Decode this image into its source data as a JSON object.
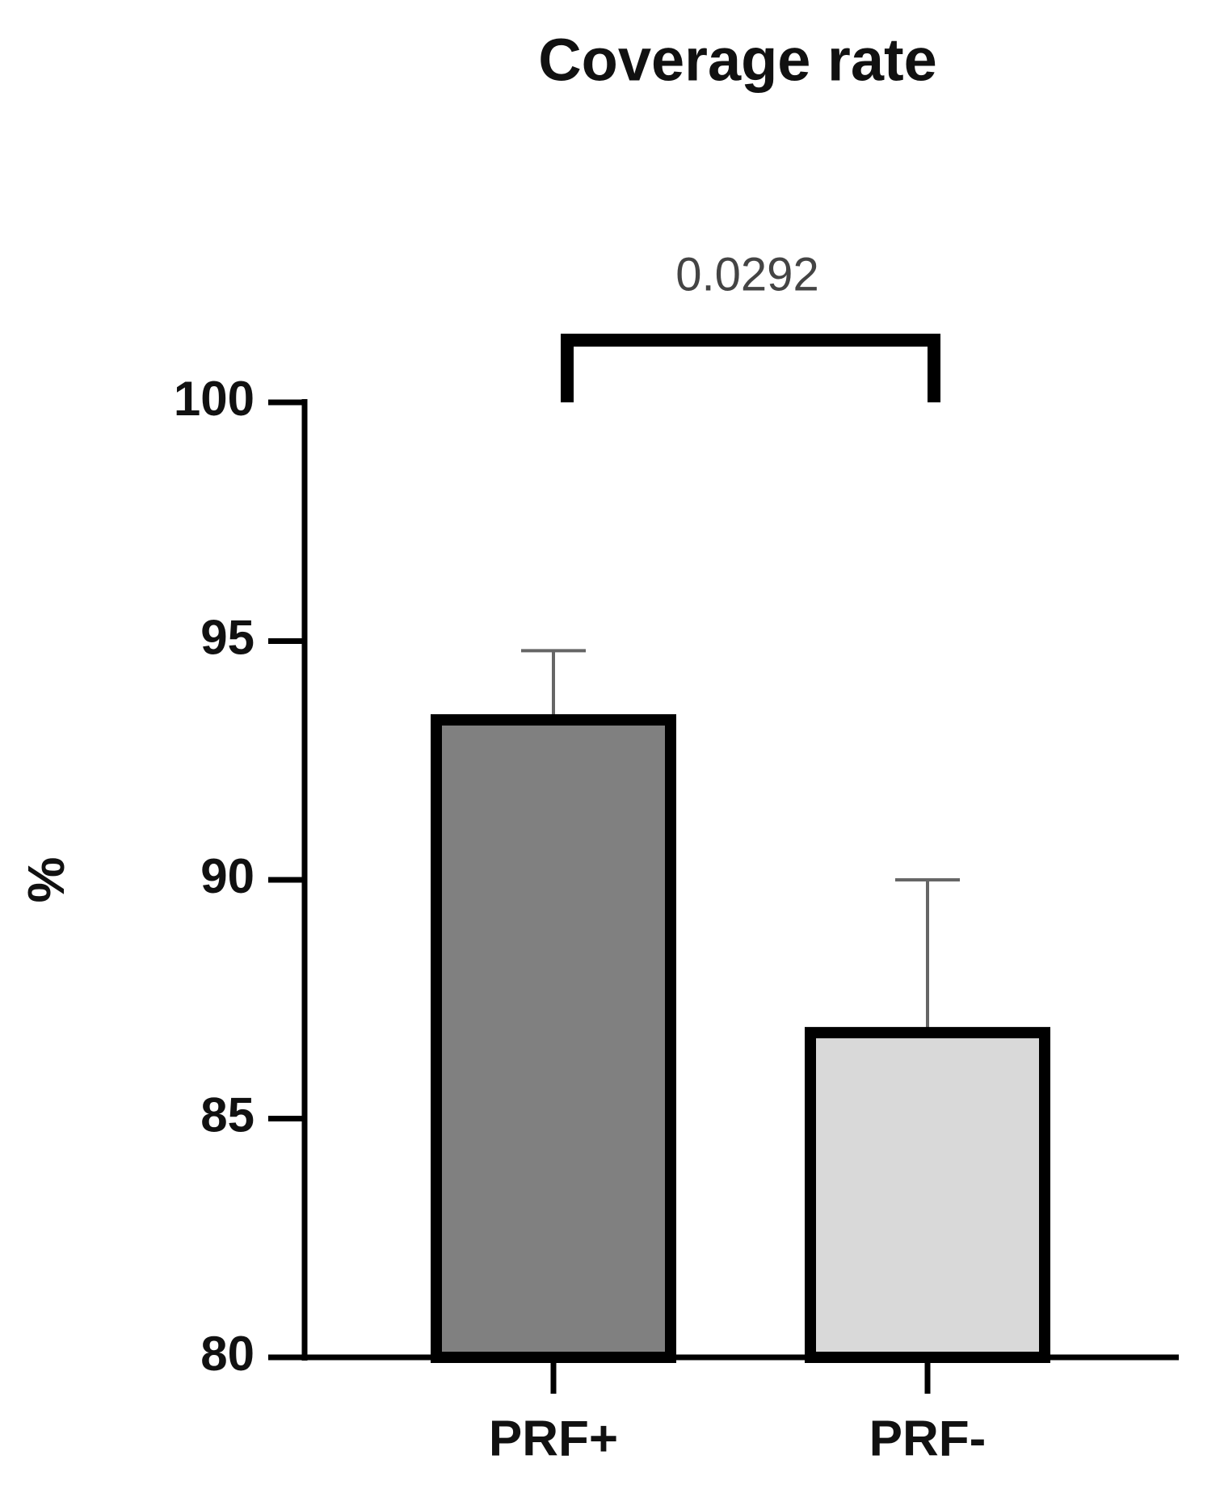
{
  "chart_data": {
    "type": "bar",
    "title": "Coverage rate",
    "ylabel": "%",
    "categories": [
      "PRF+",
      "PRF-"
    ],
    "values": [
      93.35,
      86.8
    ],
    "errors": [
      1.45,
      3.2
    ],
    "colors": [
      "#808080",
      "#d9d9d9"
    ],
    "ylim": [
      80,
      100
    ],
    "yticks": [
      80,
      85,
      90,
      95,
      100
    ],
    "grid": false,
    "annotation": "0.0292"
  }
}
